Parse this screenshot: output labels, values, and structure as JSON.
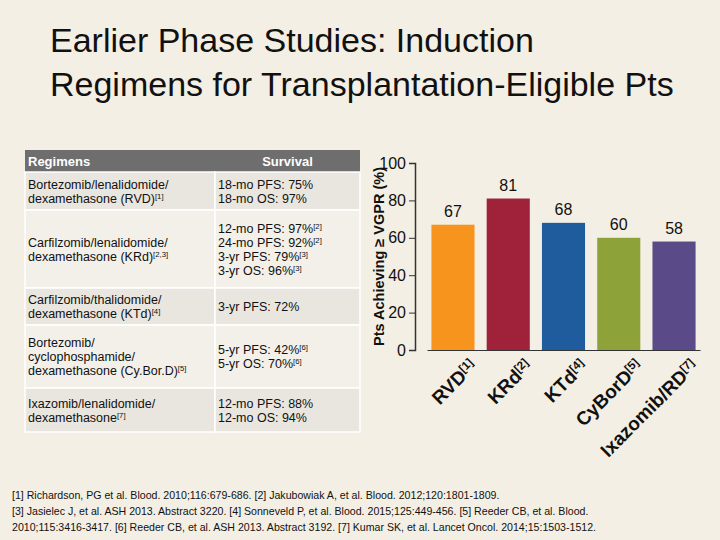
{
  "title": [
    "Earlier Phase Studies: Induction",
    "Regimens for Transplantation-Eligible Pts"
  ],
  "table": {
    "header": [
      "Regimens",
      "Survival"
    ],
    "rows": [
      [
        [
          "Bortezomib/lenalidomide/",
          "dexamethasone (RVD)[1]"
        ],
        [
          "18-mo PFS: 75%",
          "18-mo OS: 97%"
        ]
      ],
      [
        [
          "Carfilzomib/lenalidomide/",
          "dexamethasone (KRd)[2,3]"
        ],
        [
          "12-mo PFS: 97%[2]",
          "24-mo PFS: 92%[2]",
          "3-yr PFS: 79%[3]",
          "3-yr OS: 96%[3]"
        ]
      ],
      [
        [
          "Carfilzomib/thalidomide/",
          "dexamethasone (KTd)[4]"
        ],
        [
          "3-yr PFS: 72%"
        ]
      ],
      [
        [
          "Bortezomib/",
          "cyclophosphamide/",
          "dexamethasone (Cy.Bor.D)[5]"
        ],
        [
          "5-yr PFS: 42%[6]",
          "5-yr OS: 70%[6]"
        ]
      ],
      [
        [
          "Ixazomib/lenalidomide/",
          "dexamethasone[7]"
        ],
        [
          "12-mo PFS: 88%",
          "12-mo OS: 94%"
        ]
      ]
    ]
  },
  "chart_data": {
    "type": "bar",
    "y_label": "Pts Achieving ≥ VGPR (%)",
    "categories": [
      "RVD[1]",
      "KRd[2]",
      "KTd[4]",
      "CyBorD[5]",
      "Ixazomib/RD[7]"
    ],
    "values": [
      67,
      81,
      68,
      60,
      58
    ],
    "colors": [
      "#f7941d",
      "#a0223a",
      "#1f5c9e",
      "#8da339",
      "#5a4a87"
    ],
    "ylim": [
      0,
      100
    ],
    "yticks": [
      0,
      20,
      40,
      60,
      80,
      100
    ],
    "grid": false,
    "data_labels": true
  },
  "references": [
    "[1] Richardson, PG et al. Blood. 2010;116:679-686. [2] Jakubowiak A, et al. Blood. 2012;120:1801-1809.",
    "[3] Jasielec J, et al. ASH 2013. Abstract 3220. [4] Sonneveld P, et al. Blood. 2015;125:449-456. [5] Reeder CB, et al. Blood.",
    "2010;115:3416-3417. [6] Reeder CB, et al. ASH 2013. Abstract 3192. [7] Kumar SK, et al. Lancet Oncol. 2014;15:1503-1512."
  ]
}
